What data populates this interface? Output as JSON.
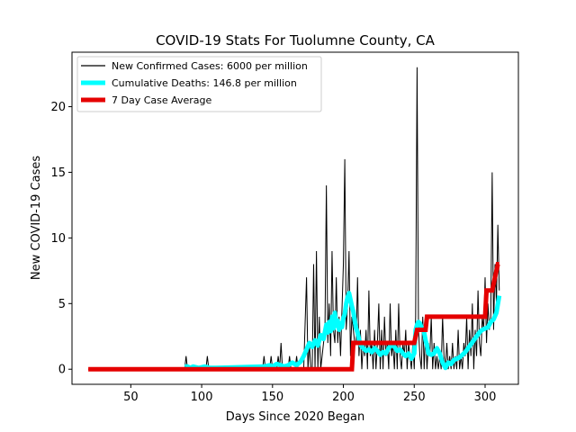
{
  "chart_data": {
    "type": "line",
    "title": "COVID-19 Stats For Tuolumne County, CA",
    "xlabel": "Days Since 2020 Began",
    "ylabel": "New COVID-19 Cases",
    "xlim": [
      8.5,
      323.5
    ],
    "ylim": [
      -1.15,
      24.15
    ],
    "xticks": [
      50,
      100,
      150,
      200,
      250,
      300
    ],
    "yticks": [
      0,
      5,
      10,
      15,
      20
    ],
    "grid": false,
    "legend_position": "top-left",
    "series": [
      {
        "name": "New Confirmed Cases: 6000 per million",
        "color": "#000000",
        "points": [
          [
            20,
            0
          ],
          [
            88,
            0
          ],
          [
            89,
            1
          ],
          [
            90,
            0
          ],
          [
            103,
            0
          ],
          [
            104,
            1
          ],
          [
            105,
            0
          ],
          [
            143,
            0
          ],
          [
            144,
            1
          ],
          [
            145,
            0
          ],
          [
            148,
            0
          ],
          [
            149,
            1
          ],
          [
            150,
            0
          ],
          [
            153,
            0
          ],
          [
            154,
            1
          ],
          [
            155,
            0
          ],
          [
            156,
            2
          ],
          [
            157,
            0
          ],
          [
            161,
            0
          ],
          [
            162,
            1
          ],
          [
            163,
            0
          ],
          [
            166,
            0
          ],
          [
            167,
            1
          ],
          [
            168,
            0
          ],
          [
            172,
            0
          ],
          [
            174,
            7
          ],
          [
            175,
            0
          ],
          [
            176,
            2
          ],
          [
            177,
            0
          ],
          [
            178,
            0
          ],
          [
            179,
            8
          ],
          [
            180,
            0
          ],
          [
            181,
            9
          ],
          [
            182,
            0
          ],
          [
            183,
            4
          ],
          [
            184,
            0
          ],
          [
            186,
            2
          ],
          [
            187,
            3
          ],
          [
            188,
            14
          ],
          [
            189,
            2
          ],
          [
            190,
            5
          ],
          [
            191,
            1
          ],
          [
            192,
            9
          ],
          [
            193,
            3
          ],
          [
            194,
            2
          ],
          [
            195,
            7
          ],
          [
            196,
            2
          ],
          [
            197,
            4
          ],
          [
            198,
            1
          ],
          [
            200,
            8
          ],
          [
            201,
            16
          ],
          [
            202,
            3
          ],
          [
            203,
            5
          ],
          [
            204,
            9
          ],
          [
            205,
            1
          ],
          [
            206,
            4
          ],
          [
            207,
            3
          ],
          [
            208,
            2
          ],
          [
            209,
            2
          ],
          [
            210,
            7
          ],
          [
            211,
            1
          ],
          [
            212,
            3
          ],
          [
            213,
            0
          ],
          [
            214,
            2
          ],
          [
            215,
            1
          ],
          [
            216,
            3
          ],
          [
            217,
            0
          ],
          [
            218,
            6
          ],
          [
            219,
            1
          ],
          [
            220,
            2
          ],
          [
            221,
            0
          ],
          [
            222,
            3
          ],
          [
            223,
            0
          ],
          [
            224,
            2
          ],
          [
            225,
            5
          ],
          [
            226,
            0
          ],
          [
            227,
            3
          ],
          [
            228,
            0
          ],
          [
            229,
            4
          ],
          [
            230,
            1
          ],
          [
            231,
            2
          ],
          [
            232,
            0
          ],
          [
            233,
            5
          ],
          [
            234,
            1
          ],
          [
            235,
            2
          ],
          [
            236,
            0
          ],
          [
            237,
            3
          ],
          [
            238,
            0
          ],
          [
            239,
            5
          ],
          [
            240,
            1
          ],
          [
            241,
            0
          ],
          [
            242,
            2
          ],
          [
            243,
            1
          ],
          [
            244,
            3
          ],
          [
            245,
            0
          ],
          [
            246,
            2
          ],
          [
            247,
            1
          ],
          [
            248,
            0
          ],
          [
            249,
            2
          ],
          [
            250,
            0
          ],
          [
            251,
            4
          ],
          [
            252,
            23
          ],
          [
            253,
            3
          ],
          [
            254,
            1
          ],
          [
            255,
            0
          ],
          [
            256,
            4
          ],
          [
            257,
            0
          ],
          [
            258,
            3
          ],
          [
            259,
            0
          ],
          [
            260,
            2
          ],
          [
            261,
            1
          ],
          [
            262,
            4
          ],
          [
            263,
            0
          ],
          [
            264,
            2
          ],
          [
            265,
            0
          ],
          [
            266,
            1
          ],
          [
            267,
            0
          ],
          [
            268,
            1
          ],
          [
            269,
            0
          ],
          [
            270,
            4
          ],
          [
            271,
            1
          ],
          [
            272,
            0
          ],
          [
            273,
            2
          ],
          [
            274,
            0
          ],
          [
            275,
            1
          ],
          [
            276,
            0
          ],
          [
            277,
            2
          ],
          [
            278,
            0
          ],
          [
            279,
            1
          ],
          [
            280,
            0
          ],
          [
            281,
            3
          ],
          [
            282,
            0
          ],
          [
            283,
            1
          ],
          [
            284,
            0
          ],
          [
            285,
            2
          ],
          [
            286,
            1
          ],
          [
            287,
            4
          ],
          [
            288,
            0
          ],
          [
            289,
            3
          ],
          [
            290,
            1
          ],
          [
            291,
            5
          ],
          [
            292,
            0
          ],
          [
            293,
            3
          ],
          [
            294,
            1
          ],
          [
            295,
            6
          ],
          [
            296,
            2
          ],
          [
            297,
            1
          ],
          [
            298,
            4
          ],
          [
            299,
            3
          ],
          [
            300,
            7
          ],
          [
            301,
            2
          ],
          [
            302,
            5
          ],
          [
            303,
            3
          ],
          [
            304,
            4
          ],
          [
            305,
            15
          ],
          [
            306,
            3
          ],
          [
            307,
            8
          ],
          [
            308,
            5
          ],
          [
            309,
            11
          ],
          [
            310,
            6
          ]
        ]
      },
      {
        "name": "Cumulative Deaths: 146.8 per million",
        "color": "#00ffff",
        "points": [
          [
            88,
            0.2
          ],
          [
            90,
            0.2
          ],
          [
            92,
            0.1
          ],
          [
            94,
            0.2
          ],
          [
            98,
            0.1
          ],
          [
            102,
            0.2
          ],
          [
            106,
            0.1
          ],
          [
            110,
            0.1
          ],
          [
            144,
            0.2
          ],
          [
            148,
            0.3
          ],
          [
            150,
            0.2
          ],
          [
            153,
            0.4
          ],
          [
            156,
            0.3
          ],
          [
            158,
            0.2
          ],
          [
            161,
            0.3
          ],
          [
            164,
            0.5
          ],
          [
            167,
            0.3
          ],
          [
            170,
            0.6
          ],
          [
            172,
            1.0
          ],
          [
            174,
            1.5
          ],
          [
            176,
            2.0
          ],
          [
            178,
            1.7
          ],
          [
            180,
            2.2
          ],
          [
            182,
            1.8
          ],
          [
            184,
            2.6
          ],
          [
            186,
            2.3
          ],
          [
            188,
            3.4
          ],
          [
            189,
            2.8
          ],
          [
            190,
            3.6
          ],
          [
            191,
            2.9
          ],
          [
            192,
            4.0
          ],
          [
            193,
            3.1
          ],
          [
            194,
            4.3
          ],
          [
            195,
            3.3
          ],
          [
            196,
            3.7
          ],
          [
            197,
            3.0
          ],
          [
            198,
            3.5
          ],
          [
            199,
            3.2
          ],
          [
            200,
            3.9
          ],
          [
            201,
            4.2
          ],
          [
            202,
            5.0
          ],
          [
            203,
            5.5
          ],
          [
            204,
            5.8
          ],
          [
            205,
            5.3
          ],
          [
            206,
            4.8
          ],
          [
            207,
            4.4
          ],
          [
            208,
            3.7
          ],
          [
            209,
            3.1
          ],
          [
            210,
            2.8
          ],
          [
            211,
            2.3
          ],
          [
            212,
            1.9
          ],
          [
            213,
            1.7
          ],
          [
            214,
            1.6
          ],
          [
            216,
            1.4
          ],
          [
            218,
            1.5
          ],
          [
            220,
            1.3
          ],
          [
            222,
            1.6
          ],
          [
            224,
            1.4
          ],
          [
            226,
            1.1
          ],
          [
            228,
            1.3
          ],
          [
            230,
            1.2
          ],
          [
            232,
            1.6
          ],
          [
            234,
            1.9
          ],
          [
            236,
            1.7
          ],
          [
            238,
            1.4
          ],
          [
            240,
            1.5
          ],
          [
            242,
            1.2
          ],
          [
            244,
            1.0
          ],
          [
            246,
            1.2
          ],
          [
            248,
            0.8
          ],
          [
            250,
            1.2
          ],
          [
            251,
            3.0
          ],
          [
            252,
            3.4
          ],
          [
            253,
            3.6
          ],
          [
            254,
            3.5
          ],
          [
            255,
            3.2
          ],
          [
            256,
            3.1
          ],
          [
            257,
            2.8
          ],
          [
            258,
            2.2
          ],
          [
            259,
            1.8
          ],
          [
            260,
            1.2
          ],
          [
            262,
            1.1
          ],
          [
            264,
            1.2
          ],
          [
            266,
            1.6
          ],
          [
            268,
            1.2
          ],
          [
            270,
            0.5
          ],
          [
            272,
            0.1
          ],
          [
            274,
            0.5
          ],
          [
            276,
            0.4
          ],
          [
            278,
            0.7
          ],
          [
            280,
            0.8
          ],
          [
            282,
            0.9
          ],
          [
            284,
            1.1
          ],
          [
            286,
            1.3
          ],
          [
            288,
            1.6
          ],
          [
            290,
            1.9
          ],
          [
            292,
            2.2
          ],
          [
            294,
            2.5
          ],
          [
            296,
            2.8
          ],
          [
            298,
            3.0
          ],
          [
            300,
            3.1
          ],
          [
            302,
            3.2
          ],
          [
            304,
            3.6
          ],
          [
            306,
            3.8
          ],
          [
            308,
            4.3
          ],
          [
            310,
            5.6
          ]
        ]
      },
      {
        "name": "7 Day Case Average",
        "color": "#e50000",
        "points": [
          [
            20,
            0
          ],
          [
            206,
            0
          ],
          [
            207,
            2
          ],
          [
            250,
            2
          ],
          [
            252,
            3
          ],
          [
            258,
            3
          ],
          [
            259,
            4
          ],
          [
            300,
            4
          ],
          [
            301,
            6
          ],
          [
            305,
            6
          ],
          [
            307,
            7
          ],
          [
            309,
            8
          ],
          [
            310,
            8
          ]
        ]
      }
    ]
  }
}
